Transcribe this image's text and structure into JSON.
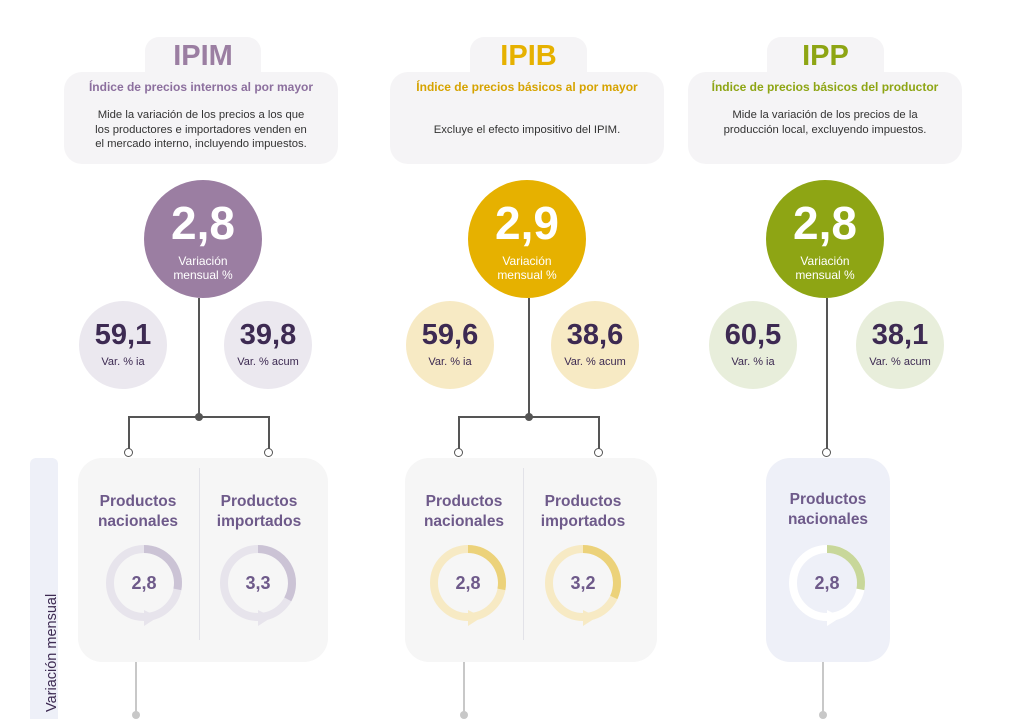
{
  "colors": {
    "ipim": "#9b7ea2",
    "ipim_light": "#ebe8ef",
    "ipib": "#e6b100",
    "ipib_light": "#f7eac4",
    "ipp": "#8ea514",
    "ipp_light": "#e8eedb",
    "dark_text": "#3d2a52",
    "product_label": "#6e5a8a"
  },
  "sidebar": {
    "label": "Variación mensual"
  },
  "indices": [
    {
      "key": "ipim",
      "title": "IPIM",
      "subtitle": "Índice de precios internos al por mayor",
      "description_lines": [
        "Mide la variación de los precios a los que",
        "los productores e importadores venden en",
        "el mercado interno, incluyendo impuestos."
      ],
      "monthly_value": "2,8",
      "monthly_label_lines": [
        "Variación",
        "mensual %"
      ],
      "yoy_value": "59,1",
      "yoy_label": "Var. % ia",
      "cum_value": "39,8",
      "cum_label": "Var. % acum",
      "products": [
        {
          "title_lines": [
            "Productos",
            "nacionales"
          ],
          "value": "2,8",
          "fraction": 0.28
        },
        {
          "title_lines": [
            "Productos",
            "importados"
          ],
          "value": "3,3",
          "fraction": 0.33
        }
      ]
    },
    {
      "key": "ipib",
      "title": "IPIB",
      "subtitle": "Índice de precios básicos al por mayor",
      "description_lines": [
        "Excluye el efecto impositivo del IPIM."
      ],
      "monthly_value": "2,9",
      "monthly_label_lines": [
        "Variación",
        "mensual %"
      ],
      "yoy_value": "59,6",
      "yoy_label": "Var. % ia",
      "cum_value": "38,6",
      "cum_label": "Var. % acum",
      "products": [
        {
          "title_lines": [
            "Productos",
            "nacionales"
          ],
          "value": "2,8",
          "fraction": 0.28
        },
        {
          "title_lines": [
            "Productos",
            "importados"
          ],
          "value": "3,2",
          "fraction": 0.32
        }
      ]
    },
    {
      "key": "ipp",
      "title": "IPP",
      "subtitle": "Índice de precios básicos del productor",
      "description_lines": [
        "Mide la variación de los precios de la",
        "producción local, excluyendo impuestos."
      ],
      "monthly_value": "2,8",
      "monthly_label_lines": [
        "Variación",
        "mensual %"
      ],
      "yoy_value": "60,5",
      "yoy_label": "Var. % ia",
      "cum_value": "38,1",
      "cum_label": "Var. % acum",
      "products": [
        {
          "title_lines": [
            "Productos",
            "nacionales"
          ],
          "value": "2,8",
          "fraction": 0.28
        }
      ]
    }
  ]
}
